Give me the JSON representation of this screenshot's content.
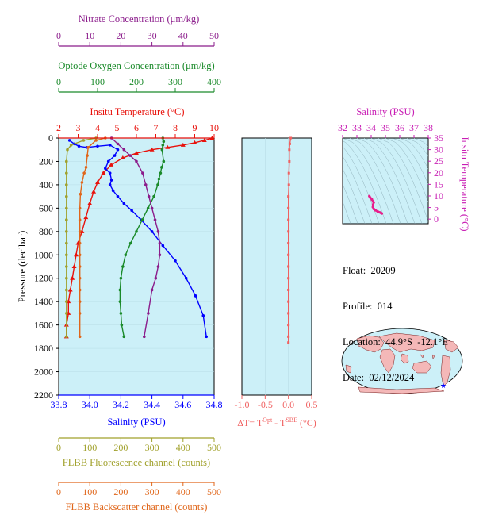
{
  "colors": {
    "nitrate": "#8b1c8b",
    "oxygen": "#1a8a2a",
    "temperature": "#e8120c",
    "salinity": "#0000ff",
    "fluorescence": "#a0a02a",
    "backscatter": "#e0661a",
    "delta_t": "#f06060",
    "ts_curve": "#e81e8c",
    "plot_bg": "#ccf0f8",
    "ts_axis": "#c81eb4"
  },
  "info": {
    "float_label": "Float:",
    "float_value": "20209",
    "profile_label": "Profile:",
    "profile_value": "014",
    "location_label": "Location:",
    "location_value": "44.9°S  -12.1°E",
    "date_label": "Date:",
    "date_value": "02/12/2024"
  },
  "labels": {
    "ylabel": "Pressure (decibar)",
    "nitrate_axis": "Nitrate Concentration (μm/kg)",
    "oxygen_axis": "Optode Oxygen Concentration (μm/kg)",
    "temperature_axis": "Insitu Temperature (°C)",
    "salinity_axis": "Salinity (PSU)",
    "fluorescence_axis": "FLBB Fluorescence channel (counts)",
    "backscatter_axis": "FLBB Backscatter channel (counts)",
    "delta_t_axis_prefix": "ΔT= T",
    "delta_t_sup1": "Opt",
    "delta_t_mid": " - T",
    "delta_t_sup2": "SBE",
    "delta_t_unit": " (°C)",
    "ts_top_axis": "Salinity (PSU)",
    "ts_right_axis": "Insitu Temperature (°C)"
  },
  "chart_data": [
    {
      "type": "line",
      "panel": "profile",
      "ylabel": "Pressure (decibar)",
      "ylim": [
        0,
        2200
      ],
      "y_ticks": [
        0,
        200,
        400,
        600,
        800,
        1000,
        1200,
        1400,
        1600,
        1800,
        2000,
        2200
      ],
      "axes": {
        "nitrate": {
          "label": "Nitrate Concentration (μm/kg)",
          "range": [
            0,
            50
          ],
          "ticks": [
            0,
            10,
            20,
            30,
            40,
            50
          ]
        },
        "oxygen": {
          "label": "Optode Oxygen Concentration (μm/kg)",
          "range": [
            0,
            400
          ],
          "ticks": [
            0,
            100,
            200,
            300,
            400
          ]
        },
        "temperature": {
          "label": "Insitu Temperature (°C)",
          "range": [
            2,
            10
          ],
          "ticks": [
            2,
            3,
            4,
            5,
            6,
            7,
            8,
            9,
            10
          ]
        },
        "salinity": {
          "label": "Salinity (PSU)",
          "range": [
            33.8,
            34.8
          ],
          "ticks": [
            33.8,
            34.0,
            34.2,
            34.4,
            34.6,
            34.8
          ],
          "tick_labels": [
            "33.8",
            "34.0",
            "34.2",
            "34.4",
            "34.6",
            "34.8"
          ]
        },
        "fluorescence": {
          "label": "FLBB Fluorescence channel (counts)",
          "range": [
            0,
            500
          ],
          "ticks": [
            0,
            100,
            200,
            300,
            400,
            500
          ]
        },
        "backscatter": {
          "label": "FLBB Backscatter channel (counts)",
          "range": [
            0,
            500
          ],
          "ticks": [
            0,
            100,
            200,
            300,
            400,
            500
          ]
        }
      },
      "series": [
        {
          "name": "Insitu Temperature",
          "axis": "temperature",
          "x": [
            9.9,
            9.5,
            9.0,
            8.4,
            7.6,
            6.8,
            6.0,
            5.3,
            4.7,
            4.3,
            4.0,
            3.8,
            3.6,
            3.4,
            3.2,
            3.0,
            2.9,
            2.8,
            2.7,
            2.6,
            2.5,
            2.5,
            2.4,
            2.4
          ],
          "p": [
            0,
            20,
            40,
            60,
            80,
            100,
            130,
            170,
            230,
            300,
            380,
            460,
            560,
            680,
            800,
            900,
            1000,
            1100,
            1200,
            1300,
            1400,
            1500,
            1600,
            1700
          ]
        },
        {
          "name": "Salinity",
          "axis": "salinity",
          "x": [
            33.87,
            33.9,
            33.93,
            33.98,
            34.05,
            34.13,
            34.18,
            34.16,
            34.12,
            34.1,
            34.13,
            34.14,
            34.13,
            34.15,
            34.18,
            34.22,
            34.27,
            34.33,
            34.4,
            34.47,
            34.55,
            34.62,
            34.68,
            34.73,
            34.75
          ],
          "p": [
            20,
            50,
            70,
            80,
            70,
            60,
            100,
            150,
            200,
            260,
            300,
            360,
            400,
            450,
            500,
            560,
            620,
            700,
            800,
            920,
            1050,
            1200,
            1350,
            1520,
            1700
          ]
        },
        {
          "name": "Optode Oxygen Concentration",
          "axis": "oxygen",
          "x": [
            268,
            270,
            268,
            266,
            270,
            265,
            262,
            258,
            255,
            245,
            230,
            215,
            200,
            185,
            172,
            165,
            160,
            158,
            158,
            160,
            162,
            168
          ],
          "p": [
            0,
            30,
            60,
            100,
            200,
            250,
            300,
            350,
            400,
            500,
            600,
            700,
            800,
            900,
            1000,
            1100,
            1200,
            1300,
            1400,
            1500,
            1600,
            1700
          ]
        },
        {
          "name": "Nitrate Concentration",
          "axis": "nitrate",
          "x": [
            17,
            19,
            21,
            23,
            25,
            27,
            28,
            29,
            30,
            31,
            32,
            32.5,
            32.5,
            32.0,
            31.2,
            30.0,
            28.8,
            27.5
          ],
          "p": [
            0,
            50,
            100,
            150,
            200,
            300,
            400,
            500,
            600,
            700,
            800,
            900,
            1000,
            1100,
            1200,
            1300,
            1500,
            1700
          ]
        },
        {
          "name": "FLBB Fluorescence channel",
          "axis": "fluorescence",
          "x": [
            120,
            80,
            40,
            28,
            25,
            25,
            25,
            25,
            25,
            25,
            25,
            25,
            25,
            25,
            25,
            25,
            25,
            25,
            25
          ],
          "p": [
            0,
            20,
            60,
            100,
            200,
            300,
            400,
            500,
            600,
            700,
            800,
            900,
            1000,
            1100,
            1200,
            1300,
            1400,
            1500,
            1700
          ]
        },
        {
          "name": "FLBB Backscatter channel",
          "axis": "backscatter",
          "x": [
            150,
            120,
            95,
            92,
            88,
            82,
            75,
            70,
            68,
            68,
            68,
            68,
            68,
            68,
            68,
            68,
            68,
            68,
            68
          ],
          "p": [
            0,
            20,
            80,
            150,
            250,
            300,
            380,
            480,
            600,
            700,
            800,
            900,
            1000,
            1100,
            1200,
            1300,
            1400,
            1500,
            1700
          ]
        }
      ]
    },
    {
      "type": "line",
      "panel": "delta_t",
      "xlabel": "ΔT= TOpt - TSBE (°C)",
      "xlim": [
        -1.0,
        0.5
      ],
      "x_ticks": [
        -1.0,
        -0.5,
        0.0,
        0.5
      ],
      "x_tick_labels": [
        "-1.0",
        "-0.5",
        "0.0",
        "0.5"
      ],
      "ylim": [
        0,
        2200
      ],
      "series": [
        {
          "name": "ΔT",
          "x": [
            0.05,
            0.03,
            0.02,
            0.02,
            0.01,
            0.01,
            0.0,
            0.0,
            0.0,
            0.0,
            0.0,
            0.0,
            0.0,
            0.0,
            0.0,
            0.0,
            0.0,
            0.0,
            0.0,
            0.0
          ],
          "p": [
            0,
            50,
            100,
            200,
            300,
            400,
            500,
            600,
            700,
            800,
            900,
            1000,
            1100,
            1200,
            1300,
            1400,
            1500,
            1600,
            1700,
            1750
          ]
        }
      ]
    },
    {
      "type": "scatter",
      "panel": "ts_diagram",
      "xlabel": "Salinity (PSU)",
      "ylabel": "Insitu Temperature (°C)",
      "xlim": [
        32,
        38
      ],
      "ylim": [
        -2,
        35
      ],
      "x_ticks": [
        32,
        33,
        34,
        35,
        36,
        37,
        38
      ],
      "y_ticks": [
        0,
        5,
        10,
        15,
        20,
        25,
        30,
        35
      ],
      "series": [
        {
          "name": "T-S",
          "x": [
            34.75,
            34.7,
            34.6,
            34.45,
            34.3,
            34.18,
            34.12,
            34.13,
            34.18,
            34.05,
            33.93,
            33.87
          ],
          "y": [
            2.4,
            2.6,
            2.9,
            3.3,
            3.8,
            4.4,
            5.2,
            6.2,
            7.2,
            8.5,
            9.3,
            9.9
          ]
        }
      ]
    },
    {
      "type": "map",
      "panel": "location_map",
      "marker": {
        "lat": -44.9,
        "lon": -12.1
      }
    }
  ]
}
